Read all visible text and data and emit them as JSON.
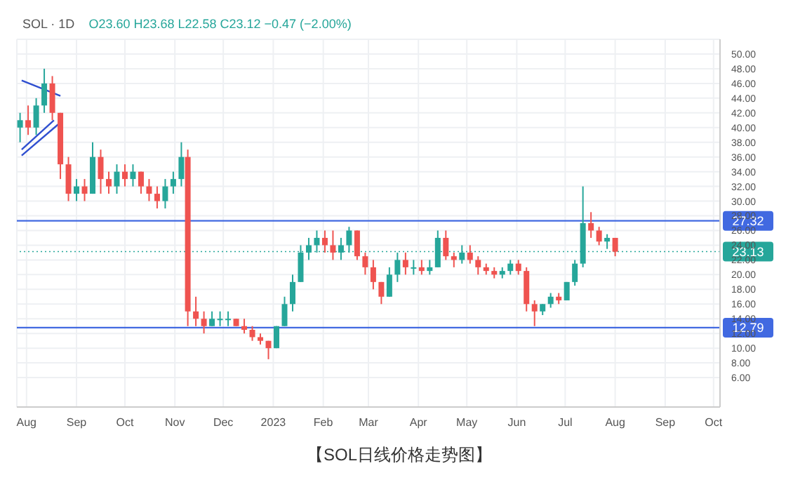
{
  "chart_data": {
    "type": "candlestick",
    "title": "SOL · 1D",
    "subtitle": "O23.60 H23.68 L22.58 C23.12 −0.47 (−2.00%)",
    "annotations": [
      "【SOL日线价格走势图】"
    ],
    "x": [
      "2022-07-28",
      "2022-08-02",
      "2022-08-07",
      "2022-08-12",
      "2022-08-17",
      "2022-08-22",
      "2022-08-27",
      "2022-09-01",
      "2022-09-06",
      "2022-09-11",
      "2022-09-16",
      "2022-09-21",
      "2022-09-26",
      "2022-10-01",
      "2022-10-06",
      "2022-10-11",
      "2022-10-16",
      "2022-10-21",
      "2022-10-26",
      "2022-10-31",
      "2022-11-05",
      "2022-11-09",
      "2022-11-14",
      "2022-11-19",
      "2022-11-24",
      "2022-11-29",
      "2022-12-04",
      "2022-12-09",
      "2022-12-14",
      "2022-12-19",
      "2022-12-24",
      "2022-12-29",
      "2023-01-03",
      "2023-01-08",
      "2023-01-13",
      "2023-01-18",
      "2023-01-23",
      "2023-01-28",
      "2023-02-02",
      "2023-02-07",
      "2023-02-12",
      "2023-02-17",
      "2023-02-22",
      "2023-02-27",
      "2023-03-04",
      "2023-03-09",
      "2023-03-14",
      "2023-03-19",
      "2023-03-24",
      "2023-03-29",
      "2023-04-03",
      "2023-04-08",
      "2023-04-13",
      "2023-04-18",
      "2023-04-23",
      "2023-04-28",
      "2023-05-03",
      "2023-05-08",
      "2023-05-13",
      "2023-05-18",
      "2023-05-23",
      "2023-05-28",
      "2023-06-02",
      "2023-06-07",
      "2023-06-12",
      "2023-06-17",
      "2023-06-22",
      "2023-06-27",
      "2023-07-02",
      "2023-07-07",
      "2023-07-12",
      "2023-07-17",
      "2023-07-22",
      "2023-07-27",
      "2023-08-01"
    ],
    "ohlc": [
      [
        40,
        42,
        38,
        41
      ],
      [
        41,
        43,
        39,
        40
      ],
      [
        40,
        44,
        39,
        43
      ],
      [
        43,
        48,
        42,
        46
      ],
      [
        46,
        47,
        41,
        42
      ],
      [
        42,
        42,
        33,
        35
      ],
      [
        35,
        36,
        30,
        31
      ],
      [
        31,
        33,
        30,
        32
      ],
      [
        32,
        33,
        30,
        31
      ],
      [
        31,
        38,
        31,
        36
      ],
      [
        36,
        37,
        31,
        33
      ],
      [
        33,
        34,
        31,
        32
      ],
      [
        32,
        35,
        31,
        34
      ],
      [
        34,
        35,
        32,
        33
      ],
      [
        33,
        35,
        32,
        34
      ],
      [
        34,
        34,
        31,
        32
      ],
      [
        32,
        33,
        30,
        31
      ],
      [
        31,
        32,
        29,
        30
      ],
      [
        30,
        33,
        29,
        32
      ],
      [
        32,
        34,
        31,
        33
      ],
      [
        33,
        38,
        32,
        36
      ],
      [
        36,
        37,
        13,
        15
      ],
      [
        15,
        17,
        13,
        14
      ],
      [
        14,
        15,
        12,
        13
      ],
      [
        13,
        15,
        13,
        14
      ],
      [
        14,
        15,
        13,
        14
      ],
      [
        14,
        15,
        13,
        14
      ],
      [
        14,
        14,
        13,
        13
      ],
      [
        13,
        14,
        12,
        12.5
      ],
      [
        12.5,
        13,
        11,
        11.5
      ],
      [
        11.5,
        12,
        10.5,
        11
      ],
      [
        11,
        11,
        8.5,
        10
      ],
      [
        10,
        13,
        10,
        13
      ],
      [
        13,
        17,
        13,
        16
      ],
      [
        16,
        20,
        15,
        19
      ],
      [
        19,
        24,
        19,
        23
      ],
      [
        23,
        25,
        22,
        24
      ],
      [
        24,
        26,
        23,
        25
      ],
      [
        25,
        26,
        23,
        24
      ],
      [
        24,
        26,
        22,
        23
      ],
      [
        23,
        25,
        22,
        24
      ],
      [
        24,
        26.5,
        23,
        26
      ],
      [
        26,
        26,
        22,
        22.5
      ],
      [
        22.5,
        23,
        20,
        21
      ],
      [
        21,
        22,
        18,
        19
      ],
      [
        19,
        19,
        16,
        17
      ],
      [
        17,
        21,
        17,
        20
      ],
      [
        20,
        23,
        19,
        22
      ],
      [
        22,
        23,
        20,
        21
      ],
      [
        21,
        22,
        20,
        21
      ],
      [
        21,
        22,
        20,
        20.5
      ],
      [
        20.5,
        22,
        20,
        21
      ],
      [
        21,
        26,
        21,
        25
      ],
      [
        25,
        26,
        22,
        22.5
      ],
      [
        22.5,
        23,
        21,
        22
      ],
      [
        22,
        24,
        21.5,
        23
      ],
      [
        23,
        24,
        21.5,
        22
      ],
      [
        22,
        22.5,
        20,
        21
      ],
      [
        21,
        21.5,
        20,
        20.5
      ],
      [
        20.5,
        21,
        19.5,
        20
      ],
      [
        20,
        21,
        19.5,
        20.5
      ],
      [
        20.5,
        22,
        20,
        21.5
      ],
      [
        21.5,
        22,
        20,
        20.5
      ],
      [
        20.5,
        21,
        15,
        16
      ],
      [
        16,
        16.5,
        13,
        15
      ],
      [
        15,
        16,
        14.5,
        16
      ],
      [
        16,
        17.5,
        15.5,
        17
      ],
      [
        17,
        17.5,
        16,
        16.5
      ],
      [
        16.5,
        19,
        16.5,
        19
      ],
      [
        19,
        22,
        18.5,
        21.5
      ],
      [
        21.5,
        32,
        21,
        27
      ],
      [
        27,
        28.5,
        25,
        26
      ],
      [
        26,
        26.5,
        24,
        24.5
      ],
      [
        24.5,
        25.5,
        23.5,
        25
      ],
      [
        25,
        25,
        22.5,
        23.12
      ]
    ],
    "series": [
      {
        "type": "line",
        "color": "#2f4fd0",
        "x": [
          "2022-07-29",
          "2022-08-22"
        ],
        "values": [
          46.4,
          44.3
        ]
      },
      {
        "type": "line",
        "color": "#2f4fd0",
        "x": [
          "2022-07-29",
          "2022-08-18"
        ],
        "values": [
          37,
          41
        ]
      },
      {
        "type": "line",
        "color": "#2f4fd0",
        "x": [
          "2022-07-29",
          "2022-08-21"
        ],
        "values": [
          36.2,
          40.5
        ]
      }
    ],
    "colors": [
      "#26a69a",
      "#ef5350",
      "#26a69a",
      "#26a69a",
      "#ef5350",
      "#ef5350",
      "#ef5350",
      "#26a69a",
      "#ef5350",
      "#26a69a",
      "#ef5350",
      "#ef5350",
      "#26a69a",
      "#ef5350",
      "#26a69a",
      "#ef5350",
      "#ef5350",
      "#ef5350",
      "#26a69a",
      "#26a69a",
      "#26a69a",
      "#ef5350",
      "#ef5350",
      "#ef5350",
      "#26a69a",
      "#26a69a",
      "#26a69a",
      "#ef5350",
      "#ef5350",
      "#ef5350",
      "#ef5350",
      "#ef5350",
      "#26a69a",
      "#26a69a",
      "#26a69a",
      "#26a69a",
      "#26a69a",
      "#26a69a",
      "#ef5350",
      "#ef5350",
      "#26a69a",
      "#26a69a",
      "#ef5350",
      "#ef5350",
      "#ef5350",
      "#ef5350",
      "#26a69a",
      "#26a69a",
      "#ef5350",
      "#26a69a",
      "#ef5350",
      "#26a69a",
      "#26a69a",
      "#ef5350",
      "#ef5350",
      "#26a69a",
      "#ef5350",
      "#ef5350",
      "#ef5350",
      "#ef5350",
      "#26a69a",
      "#26a69a",
      "#ef5350",
      "#ef5350",
      "#ef5350",
      "#26a69a",
      "#26a69a",
      "#ef5350",
      "#26a69a",
      "#26a69a",
      "#26a69a",
      "#ef5350",
      "#ef5350",
      "#26a69a",
      "#ef5350"
    ],
    "ref_lines": [
      {
        "axis": "y",
        "value": 27.32,
        "label": "27.32",
        "color": "#4169e1"
      },
      {
        "axis": "y",
        "value": 12.79,
        "label": "12.79",
        "color": "#4169e1"
      },
      {
        "axis": "y",
        "value": 23.13,
        "label": "23.13",
        "color": "#26a69a",
        "line_style": "dotted"
      }
    ],
    "xlim": [
      "2022-07-26",
      "2023-10-05"
    ],
    "xticks": [
      {
        "value": "2022-08-01",
        "label": "Aug"
      },
      {
        "value": "2022-09-01",
        "label": "Sep"
      },
      {
        "value": "2022-10-01",
        "label": "Oct"
      },
      {
        "value": "2022-11-01",
        "label": "Nov"
      },
      {
        "value": "2022-12-01",
        "label": "Dec"
      },
      {
        "value": "2023-01-01",
        "label": "2023"
      },
      {
        "value": "2023-02-01",
        "label": "Feb"
      },
      {
        "value": "2023-03-01",
        "label": "Mar"
      },
      {
        "value": "2023-04-01",
        "label": "Apr"
      },
      {
        "value": "2023-05-01",
        "label": "May"
      },
      {
        "value": "2023-06-01",
        "label": "Jun"
      },
      {
        "value": "2023-07-01",
        "label": "Jul"
      },
      {
        "value": "2023-08-01",
        "label": "Aug"
      },
      {
        "value": "2023-09-01",
        "label": "Sep"
      },
      {
        "value": "2023-10-01",
        "label": "Oct"
      }
    ],
    "ylim": [
      2,
      52
    ],
    "yticks": [
      {
        "value": 6,
        "label": "6.00"
      },
      {
        "value": 8,
        "label": "8.00"
      },
      {
        "value": 10,
        "label": "10.00"
      },
      {
        "value": 12,
        "label": "12.00"
      },
      {
        "value": 14,
        "label": "14.00"
      },
      {
        "value": 16,
        "label": "16.00"
      },
      {
        "value": 18,
        "label": "18.00"
      },
      {
        "value": 20,
        "label": "20.00"
      },
      {
        "value": 22,
        "label": "22.00"
      },
      {
        "value": 24,
        "label": "24.00"
      },
      {
        "value": 26,
        "label": "26.00"
      },
      {
        "value": 28,
        "label": "28.00"
      },
      {
        "value": 30,
        "label": "30.00"
      },
      {
        "value": 32,
        "label": "32.00"
      },
      {
        "value": 34,
        "label": "34.00"
      },
      {
        "value": 36,
        "label": "36.00"
      },
      {
        "value": 38,
        "label": "38.00"
      },
      {
        "value": 40,
        "label": "40.00"
      },
      {
        "value": 42,
        "label": "42.00"
      },
      {
        "value": 44,
        "label": "44.00"
      },
      {
        "value": 46,
        "label": "46.00"
      },
      {
        "value": 48,
        "label": "48.00"
      },
      {
        "value": 50,
        "label": "50.00"
      }
    ],
    "grid": true
  }
}
